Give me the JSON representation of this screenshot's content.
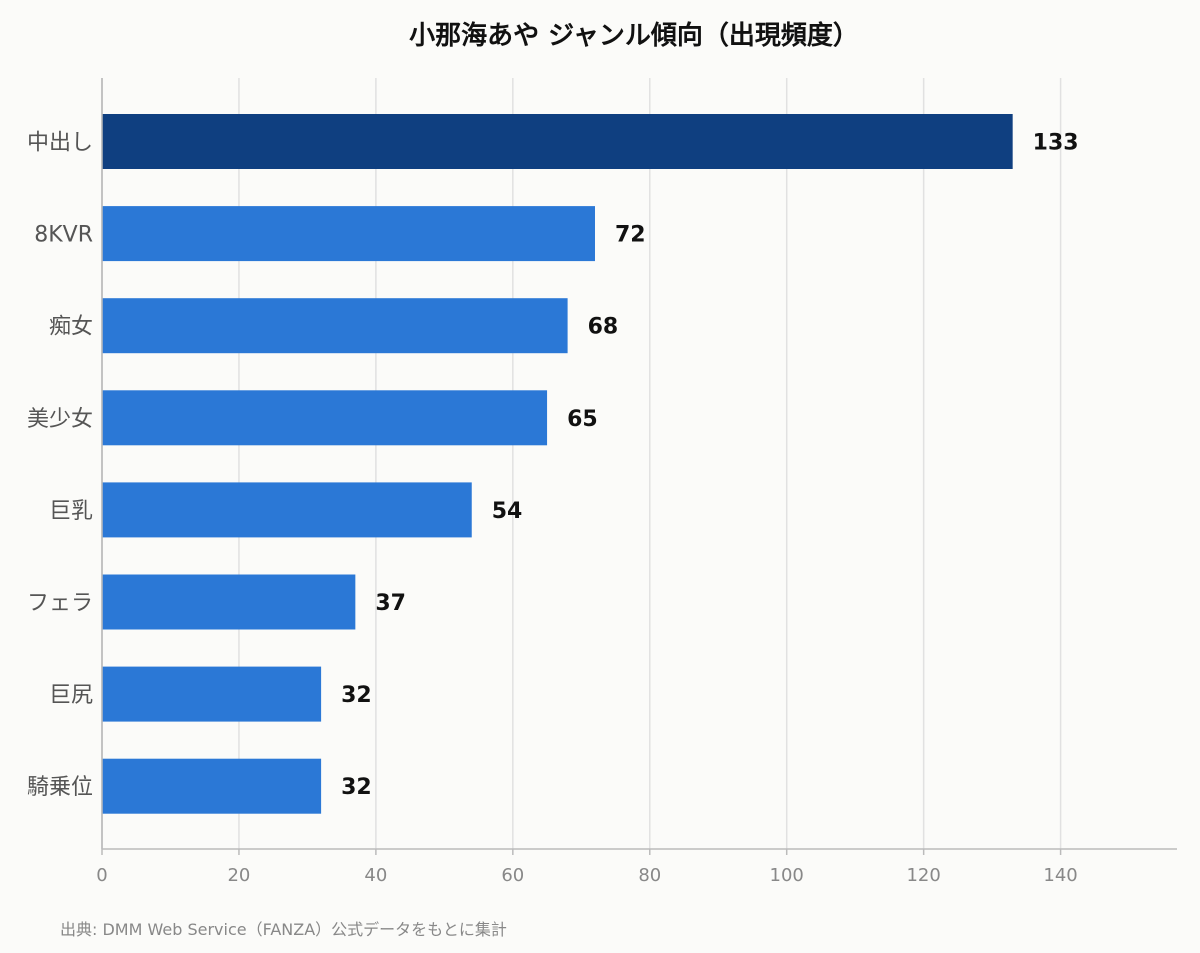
{
  "chart_data": {
    "type": "bar",
    "orientation": "horizontal",
    "title": "小那海あや ジャンル傾向（出現頻度）",
    "categories": [
      "中出し",
      "8KVR",
      "痴女",
      "美少女",
      "巨乳",
      "フェラ",
      "巨尻",
      "騎乗位"
    ],
    "values": [
      133,
      72,
      68,
      65,
      54,
      37,
      32,
      32
    ],
    "xlim": [
      0,
      157
    ],
    "xticks": [
      0,
      20,
      40,
      60,
      80,
      100,
      120,
      140
    ],
    "xlabel": "",
    "ylabel": "",
    "grid": true,
    "highlight_index": 0,
    "colors": {
      "highlight": "#0f3f80",
      "bar": "#2b78d6",
      "grid": "#e1e1e1",
      "axis": "#bbbbbb",
      "background": "#fbfbf9"
    }
  },
  "source_note": "出典: DMM Web Service（FANZA）公式データをもとに集計"
}
